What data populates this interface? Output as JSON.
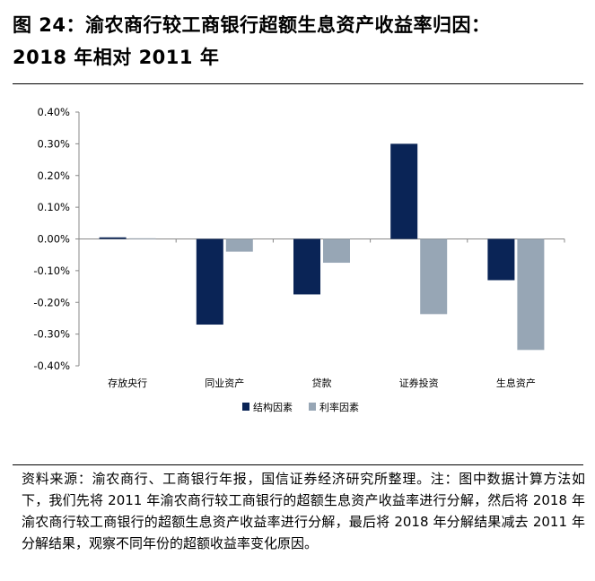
{
  "figure": {
    "title_line1": "图 24：渝农商行较工商银行超额生息资产收益率归因：",
    "title_line2": "2018 年相对 2011 年",
    "source": "资料来源：渝农商行、工商银行年报，国信证券经济研究所整理。注：图中数据计算方法如下，我们先将 2011 年渝农商行较工商银行的超额生息资产收益率进行分解，然后将 2018 年渝农商行较工商银行的超额生息资产收益率进行分解，最后将 2018 年分解结果减去 2011 年分解结果，观察不同年份的超额收益率变化原因。"
  },
  "chart_data": {
    "type": "bar",
    "title": "",
    "xlabel": "",
    "ylabel": "",
    "categories": [
      "存放央行",
      "同业资产",
      "贷款",
      "证券投资",
      "生息资产"
    ],
    "series": [
      {
        "name": "结构因素",
        "color": "#0a2456",
        "values": [
          0.005,
          -0.27,
          -0.175,
          0.3,
          -0.13
        ]
      },
      {
        "name": "利率因素",
        "color": "#97a6b5",
        "values": [
          0.002,
          -0.04,
          -0.075,
          -0.237,
          -0.35
        ]
      }
    ],
    "ylim": [
      -0.4,
      0.4
    ],
    "yticks": [
      0.4,
      0.3,
      0.2,
      0.1,
      0.0,
      -0.1,
      -0.2,
      -0.3,
      -0.4
    ],
    "ytick_labels": [
      "0.40%",
      "0.30%",
      "0.20%",
      "0.10%",
      "0.00%",
      "-0.10%",
      "-0.20%",
      "-0.30%",
      "-0.40%"
    ],
    "value_unit": "%",
    "grid": false,
    "legend_position": "bottom-center"
  }
}
